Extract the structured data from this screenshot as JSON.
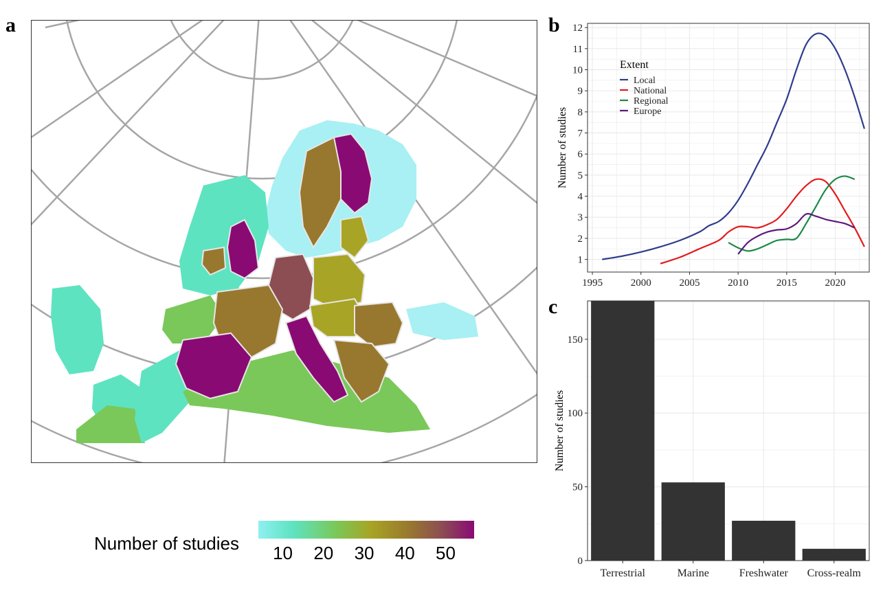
{
  "panels": {
    "a": "a",
    "b": "b",
    "c": "c"
  },
  "map": {
    "legend_title": "Number of studies",
    "legend_ticks": [
      10,
      20,
      30,
      40,
      50
    ],
    "legend_range": [
      4,
      57
    ],
    "colors": {
      "low": "#8ff0f0",
      "teal": "#5ee3c1",
      "green": "#7ac859",
      "olive": "#a8a425",
      "brown": "#98782e",
      "rust": "#8c4d53",
      "magenta": "#8a0a74",
      "grid": "#a6a6a6",
      "border": "#e6e6e6"
    }
  },
  "chart_data": [
    {
      "type": "line",
      "panel": "b",
      "ylabel": "Number of studies",
      "xlabel": "",
      "xlim": [
        1994.5,
        2023.5
      ],
      "ylim": [
        0.4,
        12.2
      ],
      "xticks": [
        1995,
        2000,
        2005,
        2010,
        2015,
        2020
      ],
      "yticks": [
        1,
        2,
        3,
        4,
        5,
        6,
        7,
        8,
        9,
        10,
        11,
        12
      ],
      "grid": true,
      "legend": {
        "title": "Extent",
        "placement": "top-left"
      },
      "series": [
        {
          "name": "Local",
          "color": "#2e3c8c",
          "x": [
            1996,
            1998,
            2000,
            2002,
            2004,
            2006,
            2007,
            2008,
            2009,
            2010,
            2011,
            2012,
            2013,
            2014,
            2015,
            2016,
            2017,
            2018,
            2019,
            2020,
            2021,
            2022,
            2023
          ],
          "y": [
            1.0,
            1.15,
            1.35,
            1.6,
            1.9,
            2.3,
            2.6,
            2.8,
            3.2,
            3.8,
            4.6,
            5.5,
            6.4,
            7.5,
            8.6,
            10.0,
            11.2,
            11.7,
            11.6,
            11.0,
            10.0,
            8.7,
            7.2
          ]
        },
        {
          "name": "National",
          "color": "#e31a1c",
          "x": [
            2002,
            2004,
            2006,
            2008,
            2009,
            2010,
            2011,
            2012,
            2013,
            2014,
            2015,
            2016,
            2017,
            2018,
            2019,
            2020,
            2021,
            2022,
            2023
          ],
          "y": [
            0.8,
            1.1,
            1.5,
            1.9,
            2.3,
            2.55,
            2.55,
            2.5,
            2.65,
            2.9,
            3.4,
            4.0,
            4.5,
            4.8,
            4.7,
            4.1,
            3.3,
            2.5,
            1.6
          ]
        },
        {
          "name": "Regional",
          "color": "#1a8a47",
          "x": [
            2009,
            2010,
            2011,
            2012,
            2013,
            2014,
            2015,
            2016,
            2017,
            2018,
            2019,
            2020,
            2021,
            2022
          ],
          "y": [
            1.8,
            1.55,
            1.4,
            1.5,
            1.7,
            1.9,
            1.95,
            2.0,
            2.7,
            3.5,
            4.3,
            4.8,
            4.95,
            4.8
          ]
        },
        {
          "name": "Europe",
          "color": "#5c1a7a",
          "x": [
            2010,
            2011,
            2012,
            2013,
            2014,
            2015,
            2016,
            2017,
            2018,
            2019,
            2020,
            2021,
            2022
          ],
          "y": [
            1.25,
            1.8,
            2.1,
            2.3,
            2.4,
            2.45,
            2.7,
            3.15,
            3.05,
            2.9,
            2.8,
            2.7,
            2.5
          ]
        }
      ]
    },
    {
      "type": "bar",
      "panel": "c",
      "ylabel": "Number of studies",
      "xlabel": "",
      "categories": [
        "Terrestrial",
        "Marine",
        "Freshwater",
        "Cross-realm"
      ],
      "values": [
        176,
        53,
        27,
        8
      ],
      "ylim": [
        0,
        176
      ],
      "yticks": [
        0,
        50,
        100,
        150
      ],
      "bar_color": "#333333",
      "grid": true
    }
  ]
}
